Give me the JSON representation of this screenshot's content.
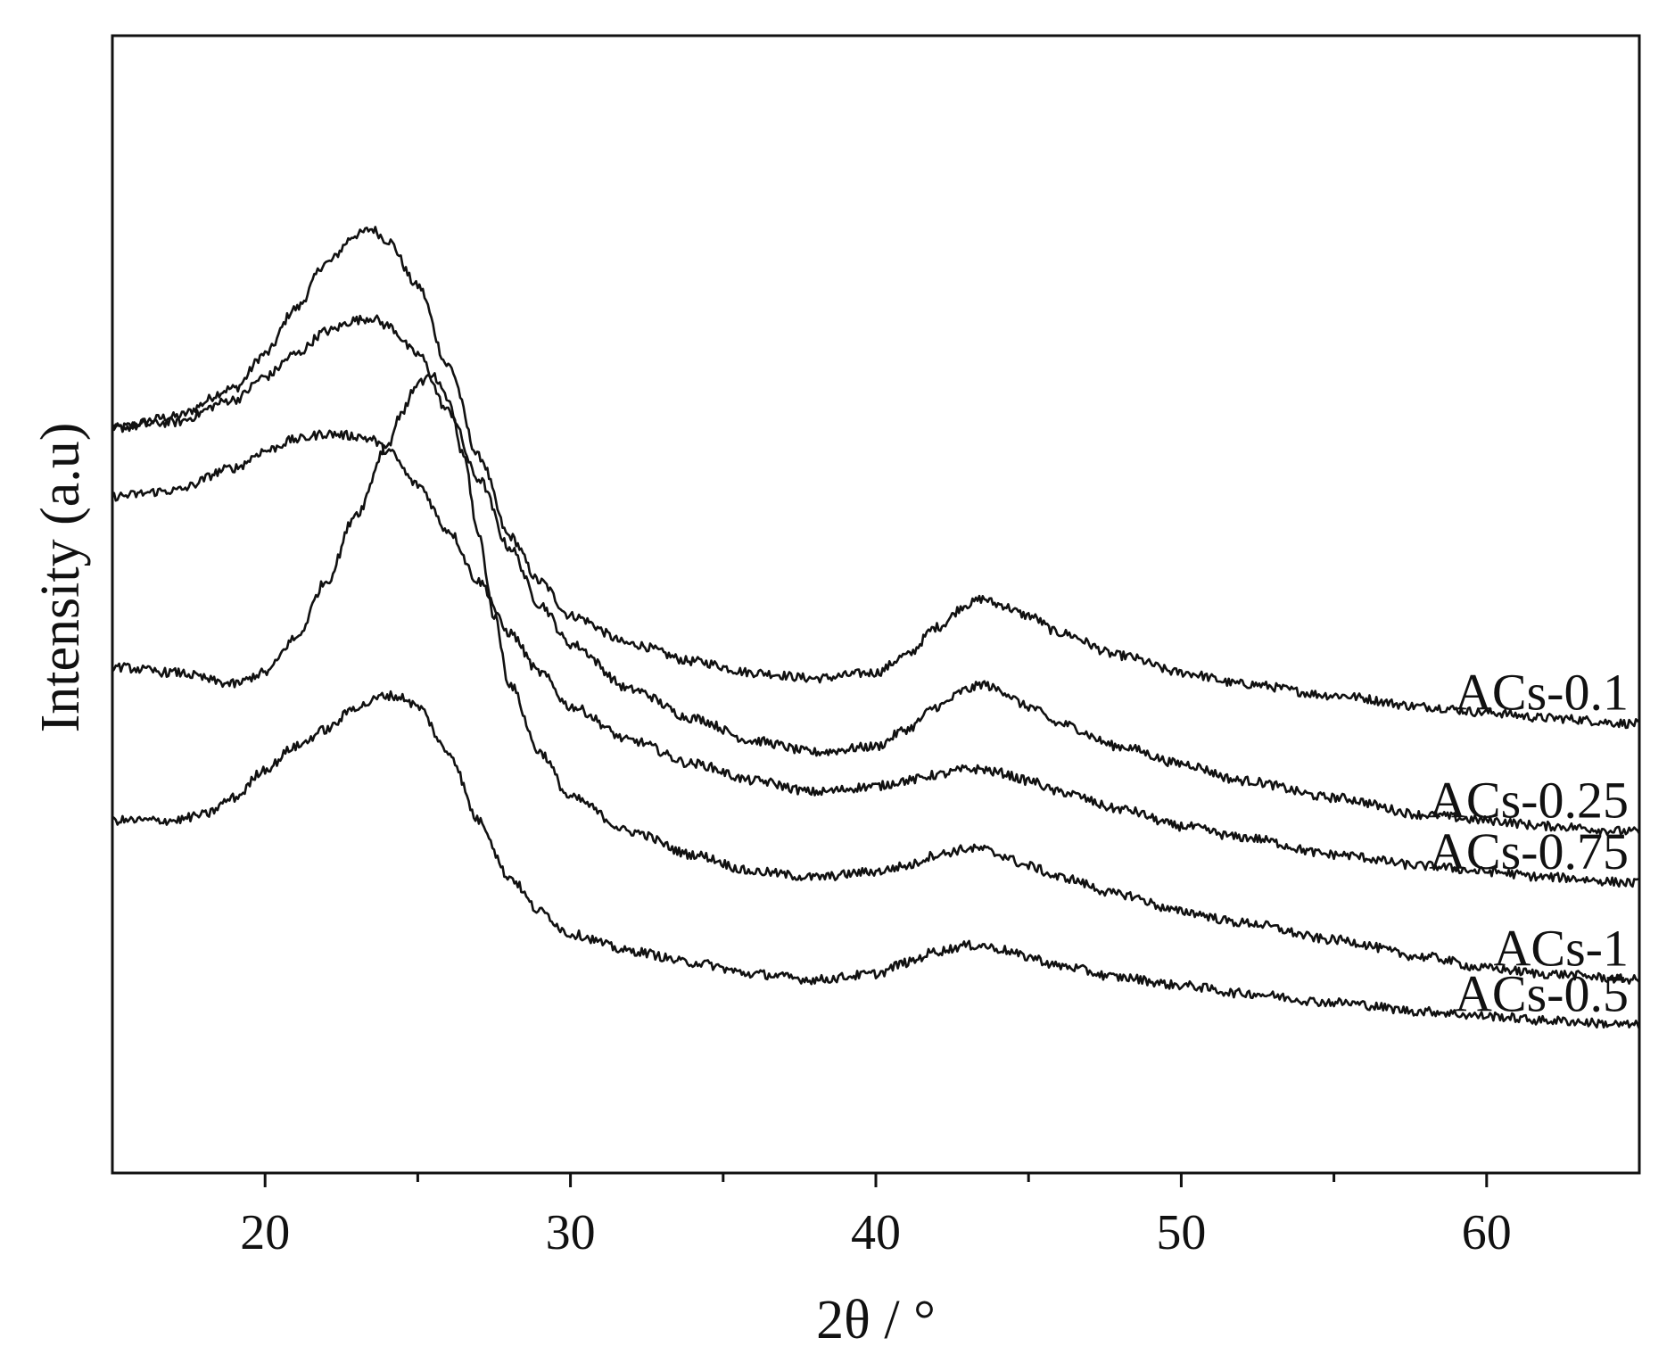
{
  "chart_data": {
    "type": "line",
    "title": "",
    "xlabel": "2θ / °",
    "ylabel": "Intensity (a.u)",
    "xlim": [
      15,
      65
    ],
    "xticks": [
      20,
      30,
      40,
      50,
      60
    ],
    "xminor_ticks": [
      25,
      35,
      45,
      55
    ],
    "y_ticks_shown": false,
    "grid": false,
    "legend": "none (series labeled at right end of each curve)",
    "line_color": "#111111",
    "y_units": "arbitrary (normalized to plot height, 0 = bottom axis, 1 = top frame)",
    "series": [
      {
        "name": "ACs-0.1",
        "x": [
          15,
          17,
          19,
          20,
          21,
          22,
          23,
          23.5,
          24,
          25,
          26,
          27,
          28,
          29,
          30,
          32,
          34,
          36,
          38,
          40,
          41,
          42,
          43,
          43.5,
          44,
          45,
          46,
          48,
          50,
          52,
          55,
          58,
          60,
          62,
          65
        ],
        "y": [
          0.655,
          0.665,
          0.69,
          0.72,
          0.76,
          0.8,
          0.825,
          0.83,
          0.82,
          0.78,
          0.71,
          0.63,
          0.56,
          0.52,
          0.49,
          0.465,
          0.45,
          0.44,
          0.435,
          0.44,
          0.455,
          0.48,
          0.5,
          0.505,
          0.5,
          0.49,
          0.475,
          0.455,
          0.44,
          0.43,
          0.42,
          0.41,
          0.405,
          0.4,
          0.395
        ]
      },
      {
        "name": "ACs-0.25",
        "x": [
          15,
          17,
          19,
          20,
          21,
          22,
          23,
          23.5,
          24,
          25,
          26,
          27,
          28,
          29,
          30,
          32,
          34,
          36,
          38,
          40,
          41,
          42,
          43,
          43.5,
          44,
          45,
          46,
          48,
          50,
          52,
          55,
          58,
          60,
          62,
          65
        ],
        "y": [
          0.655,
          0.66,
          0.68,
          0.7,
          0.72,
          0.74,
          0.75,
          0.752,
          0.745,
          0.72,
          0.67,
          0.61,
          0.55,
          0.5,
          0.465,
          0.425,
          0.4,
          0.38,
          0.37,
          0.375,
          0.39,
          0.41,
          0.425,
          0.43,
          0.425,
          0.41,
          0.395,
          0.375,
          0.36,
          0.345,
          0.33,
          0.315,
          0.31,
          0.305,
          0.3
        ]
      },
      {
        "name": "ACs-0.75",
        "x": [
          15,
          17,
          19,
          20,
          21,
          22,
          23,
          23.5,
          24,
          25,
          26,
          27,
          28,
          29,
          30,
          32,
          34,
          36,
          38,
          40,
          41,
          42,
          43,
          43.5,
          44,
          45,
          46,
          48,
          50,
          52,
          55,
          58,
          60,
          62,
          65
        ],
        "y": [
          0.595,
          0.6,
          0.62,
          0.635,
          0.645,
          0.65,
          0.648,
          0.645,
          0.635,
          0.605,
          0.565,
          0.52,
          0.475,
          0.44,
          0.41,
          0.38,
          0.36,
          0.345,
          0.335,
          0.34,
          0.345,
          0.35,
          0.355,
          0.355,
          0.352,
          0.345,
          0.335,
          0.32,
          0.305,
          0.295,
          0.28,
          0.27,
          0.265,
          0.26,
          0.255
        ]
      },
      {
        "name": "ACs-1",
        "x": [
          15,
          17,
          19,
          20,
          21,
          22,
          23,
          24,
          24.5,
          25,
          25.5,
          26,
          26.5,
          27,
          27.5,
          28,
          29,
          30,
          32,
          34,
          36,
          38,
          40,
          41,
          42,
          43,
          43.5,
          44,
          45,
          46,
          48,
          50,
          52,
          55,
          58,
          60,
          62,
          65
        ],
        "y": [
          0.445,
          0.44,
          0.43,
          0.44,
          0.47,
          0.52,
          0.58,
          0.64,
          0.67,
          0.695,
          0.7,
          0.68,
          0.63,
          0.56,
          0.49,
          0.43,
          0.37,
          0.33,
          0.3,
          0.28,
          0.265,
          0.26,
          0.265,
          0.27,
          0.28,
          0.285,
          0.285,
          0.28,
          0.27,
          0.26,
          0.245,
          0.23,
          0.22,
          0.205,
          0.19,
          0.18,
          0.175,
          0.17
        ]
      },
      {
        "name": "ACs-0.5",
        "x": [
          15,
          17,
          18,
          19,
          20,
          21,
          22,
          23,
          24,
          24.5,
          25,
          26,
          27,
          28,
          29,
          30,
          32,
          34,
          36,
          38,
          40,
          41,
          42,
          43,
          43.5,
          44,
          45,
          46,
          48,
          50,
          52,
          55,
          58,
          60,
          62,
          65
        ],
        "y": [
          0.31,
          0.31,
          0.315,
          0.33,
          0.355,
          0.375,
          0.39,
          0.41,
          0.42,
          0.418,
          0.41,
          0.37,
          0.31,
          0.26,
          0.23,
          0.21,
          0.195,
          0.185,
          0.175,
          0.17,
          0.175,
          0.185,
          0.195,
          0.2,
          0.2,
          0.197,
          0.19,
          0.182,
          0.172,
          0.165,
          0.158,
          0.15,
          0.142,
          0.138,
          0.134,
          0.13
        ]
      }
    ]
  }
}
